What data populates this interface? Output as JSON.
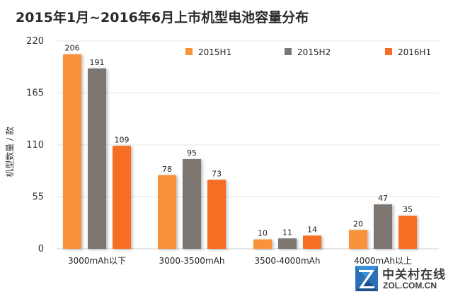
{
  "chart_data": {
    "type": "bar",
    "title": "2015年1月~2016年6月上市机型电池容量分布",
    "ylabel": "机型数量 / 款",
    "xlabel": "",
    "ylim": [
      0,
      220
    ],
    "yticks": [
      "0",
      "55",
      "110",
      "165",
      "220"
    ],
    "ytick_values": [
      0,
      55,
      110,
      165,
      220
    ],
    "legend_position": "top-right",
    "categories": [
      "3000mAh以下",
      "3000-3500mAh",
      "3500-4000mAh",
      "4000mAh以上"
    ],
    "series": [
      {
        "name": "2015H1",
        "color": "#F8923A",
        "values": [
          206,
          78,
          10,
          20
        ]
      },
      {
        "name": "2015H2",
        "color": "#7D7570",
        "values": [
          191,
          95,
          11,
          47
        ]
      },
      {
        "name": "2016H1",
        "color": "#F56E22",
        "values": [
          109,
          73,
          14,
          35
        ]
      }
    ],
    "grid": true
  },
  "watermark": {
    "name_cn": "中关村在线",
    "name_en": "ZOL.COM.CN"
  }
}
